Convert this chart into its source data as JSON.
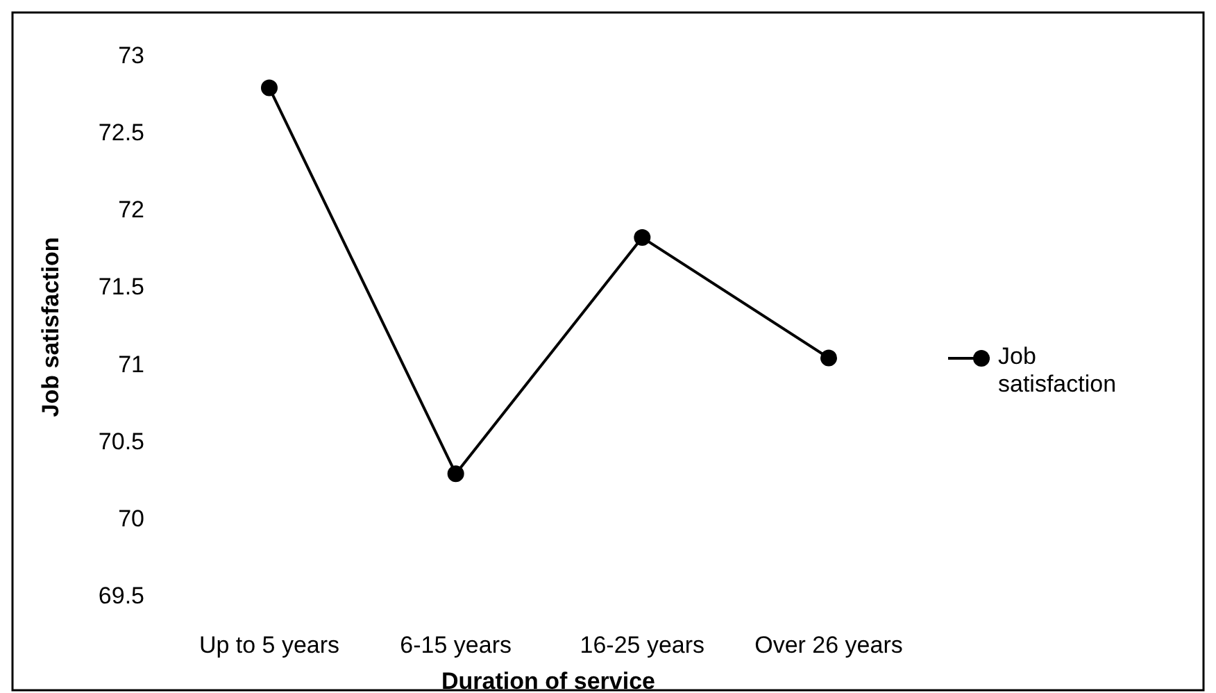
{
  "chart_data": {
    "type": "line",
    "xlabel": "Duration of service",
    "ylabel": "Job satisfaction",
    "categories": [
      "Up to 5 years",
      "6-15 years",
      "16-25 years",
      "Over 26 years"
    ],
    "series": [
      {
        "name": "Job satisfaction",
        "color": "#000000",
        "values": [
          72.8,
          70.3,
          71.83,
          71.05
        ]
      }
    ],
    "ylim": [
      69.5,
      73
    ],
    "yticks": [
      69.5,
      70,
      70.5,
      71,
      71.5,
      72,
      72.5,
      73
    ],
    "grid": false,
    "legend": "right",
    "marker": "circle",
    "line_style": "solid"
  }
}
